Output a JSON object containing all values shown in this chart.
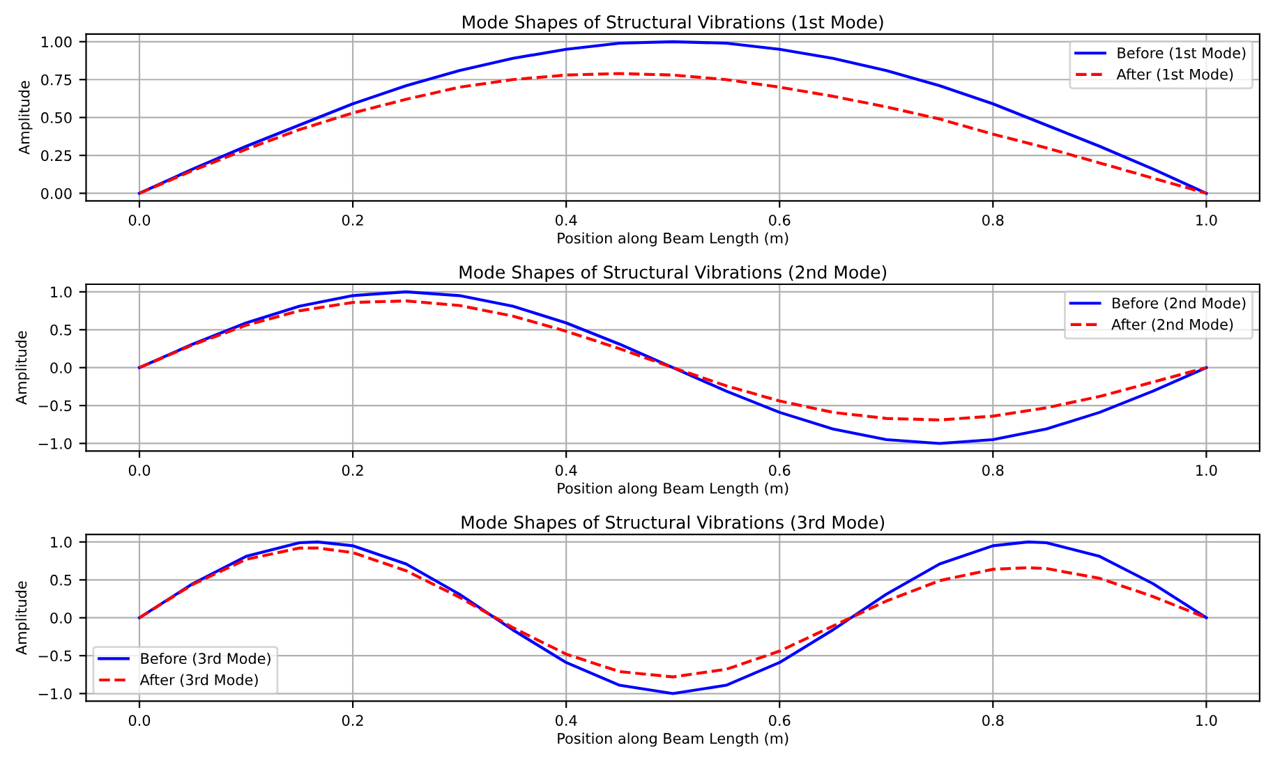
{
  "chart_data": [
    {
      "type": "line",
      "title": "Mode Shapes of Structural Vibrations (1st Mode)",
      "xlabel": "Position along Beam Length (m)",
      "ylabel": "Amplitude",
      "x": [
        0,
        0.05,
        0.1,
        0.15,
        0.2,
        0.25,
        0.3,
        0.35,
        0.4,
        0.45,
        0.5,
        0.55,
        0.6,
        0.65,
        0.7,
        0.75,
        0.8,
        0.85,
        0.9,
        0.95,
        1.0
      ],
      "series": [
        {
          "name": "Before (1st Mode)",
          "color": "#0000ff",
          "line_style": "solid",
          "values": [
            0,
            0.16,
            0.31,
            0.45,
            0.59,
            0.71,
            0.81,
            0.89,
            0.95,
            0.99,
            1.0,
            0.99,
            0.95,
            0.89,
            0.81,
            0.71,
            0.59,
            0.45,
            0.31,
            0.16,
            0
          ]
        },
        {
          "name": "After (1st Mode)",
          "color": "#ff0000",
          "line_style": "dashed",
          "values": [
            0,
            0.15,
            0.29,
            0.42,
            0.53,
            0.62,
            0.7,
            0.75,
            0.78,
            0.79,
            0.78,
            0.75,
            0.7,
            0.64,
            0.57,
            0.49,
            0.39,
            0.3,
            0.2,
            0.1,
            0
          ]
        }
      ],
      "xlim": [
        -0.05,
        1.05
      ],
      "xticks": [
        {
          "value": 0,
          "label": "0.0"
        },
        {
          "value": 0.2,
          "label": "0.2"
        },
        {
          "value": 0.4,
          "label": "0.4"
        },
        {
          "value": 0.6,
          "label": "0.6"
        },
        {
          "value": 0.8,
          "label": "0.8"
        },
        {
          "value": 1,
          "label": "1.0"
        }
      ],
      "ylim": [
        -0.05,
        1.05
      ],
      "yticks": [
        {
          "value": 0,
          "label": "0.00"
        },
        {
          "value": 0.25,
          "label": "0.25"
        },
        {
          "value": 0.5,
          "label": "0.50"
        },
        {
          "value": 0.75,
          "label": "0.75"
        },
        {
          "value": 1,
          "label": "1.00"
        }
      ],
      "grid": true,
      "legend": "top right"
    },
    {
      "type": "line",
      "title": "Mode Shapes of Structural Vibrations (2nd Mode)",
      "xlabel": "Position along Beam Length (m)",
      "ylabel": "Amplitude",
      "x": [
        0,
        0.05,
        0.1,
        0.15,
        0.2,
        0.25,
        0.3,
        0.35,
        0.4,
        0.45,
        0.5,
        0.55,
        0.6,
        0.65,
        0.7,
        0.75,
        0.8,
        0.85,
        0.9,
        0.95,
        1.0
      ],
      "series": [
        {
          "name": "Before (2nd Mode)",
          "color": "#0000ff",
          "line_style": "solid",
          "values": [
            0,
            0.31,
            0.59,
            0.81,
            0.95,
            1.0,
            0.95,
            0.81,
            0.59,
            0.31,
            0,
            -0.31,
            -0.59,
            -0.81,
            -0.95,
            -1.0,
            -0.95,
            -0.81,
            -0.59,
            -0.31,
            0
          ]
        },
        {
          "name": "After (2nd Mode)",
          "color": "#ff0000",
          "line_style": "dashed",
          "values": [
            0,
            0.3,
            0.56,
            0.75,
            0.86,
            0.88,
            0.82,
            0.68,
            0.48,
            0.25,
            0,
            -0.24,
            -0.44,
            -0.59,
            -0.67,
            -0.69,
            -0.64,
            -0.53,
            -0.38,
            -0.19,
            0
          ]
        }
      ],
      "xlim": [
        -0.05,
        1.05
      ],
      "xticks": [
        {
          "value": 0,
          "label": "0.0"
        },
        {
          "value": 0.2,
          "label": "0.2"
        },
        {
          "value": 0.4,
          "label": "0.4"
        },
        {
          "value": 0.6,
          "label": "0.6"
        },
        {
          "value": 0.8,
          "label": "0.8"
        },
        {
          "value": 1,
          "label": "1.0"
        }
      ],
      "ylim": [
        -1.1,
        1.1
      ],
      "yticks": [
        {
          "value": -1,
          "label": "−1.0"
        },
        {
          "value": -0.5,
          "label": "−0.5"
        },
        {
          "value": 0,
          "label": "0.0"
        },
        {
          "value": 0.5,
          "label": "0.5"
        },
        {
          "value": 1,
          "label": "1.0"
        }
      ],
      "grid": true,
      "legend": "top right"
    },
    {
      "type": "line",
      "title": "Mode Shapes of Structural Vibrations (3rd Mode)",
      "xlabel": "Position along Beam Length (m)",
      "ylabel": "Amplitude",
      "x": [
        0,
        0.05,
        0.1,
        0.15,
        0.167,
        0.2,
        0.25,
        0.3,
        0.35,
        0.4,
        0.45,
        0.5,
        0.55,
        0.6,
        0.65,
        0.7,
        0.75,
        0.8,
        0.833,
        0.85,
        0.9,
        0.95,
        1.0
      ],
      "series": [
        {
          "name": "Before (3rd Mode)",
          "color": "#0000ff",
          "line_style": "solid",
          "values": [
            0,
            0.45,
            0.81,
            0.99,
            1.0,
            0.95,
            0.71,
            0.31,
            -0.16,
            -0.59,
            -0.89,
            -1.0,
            -0.89,
            -0.59,
            -0.16,
            0.31,
            0.71,
            0.95,
            1.0,
            0.99,
            0.81,
            0.45,
            0
          ]
        },
        {
          "name": "After (3rd Mode)",
          "color": "#ff0000",
          "line_style": "dashed",
          "values": [
            0,
            0.44,
            0.77,
            0.92,
            0.92,
            0.86,
            0.62,
            0.27,
            -0.13,
            -0.48,
            -0.71,
            -0.78,
            -0.68,
            -0.44,
            -0.11,
            0.22,
            0.49,
            0.64,
            0.66,
            0.65,
            0.52,
            0.28,
            0
          ]
        }
      ],
      "xlim": [
        -0.05,
        1.05
      ],
      "xticks": [
        {
          "value": 0,
          "label": "0.0"
        },
        {
          "value": 0.2,
          "label": "0.2"
        },
        {
          "value": 0.4,
          "label": "0.4"
        },
        {
          "value": 0.6,
          "label": "0.6"
        },
        {
          "value": 0.8,
          "label": "0.8"
        },
        {
          "value": 1,
          "label": "1.0"
        }
      ],
      "ylim": [
        -1.1,
        1.1
      ],
      "yticks": [
        {
          "value": -1,
          "label": "−1.0"
        },
        {
          "value": -0.5,
          "label": "−0.5"
        },
        {
          "value": 0,
          "label": "0.0"
        },
        {
          "value": 0.5,
          "label": "0.5"
        },
        {
          "value": 1,
          "label": "1.0"
        }
      ],
      "grid": true,
      "legend": "bottom left"
    }
  ]
}
